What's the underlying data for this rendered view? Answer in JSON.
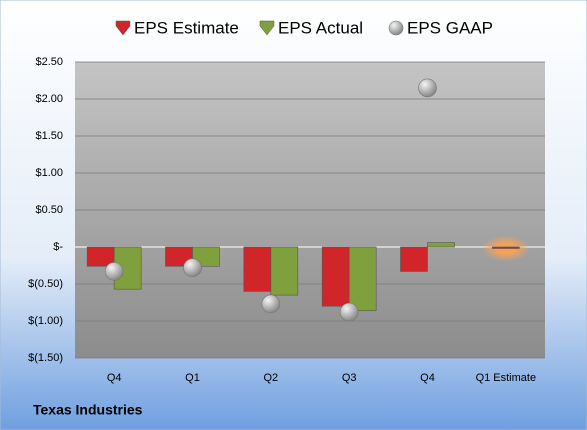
{
  "chart_data": {
    "type": "bar",
    "categories": [
      "Q4",
      "Q1",
      "Q2",
      "Q3",
      "Q4",
      "Q1 Estimate"
    ],
    "series": [
      {
        "name": "EPS Estimate",
        "color": "#d0262a",
        "values": [
          -0.26,
          -0.26,
          -0.6,
          -0.8,
          -0.33,
          -0.02
        ]
      },
      {
        "name": "EPS Actual",
        "color": "#7fa03c",
        "values": [
          -0.57,
          -0.26,
          -0.65,
          -0.86,
          0.06,
          null
        ]
      },
      {
        "name": "EPS GAAP",
        "type": "scatter",
        "color": "#a8a8a8",
        "values": [
          -0.33,
          -0.28,
          -0.77,
          -0.88,
          2.15,
          null
        ]
      }
    ],
    "ylim": [
      -1.5,
      2.5
    ],
    "yticks": [
      {
        "value": 2.5,
        "label": "$2.50"
      },
      {
        "value": 2.0,
        "label": "$2.00"
      },
      {
        "value": 1.5,
        "label": "$1.50"
      },
      {
        "value": 1.0,
        "label": "$1.00"
      },
      {
        "value": 0.5,
        "label": "$0.50"
      },
      {
        "value": 0,
        "label": "$-"
      },
      {
        "value": -0.5,
        "label": "$(0.50)"
      },
      {
        "value": -1.0,
        "label": "$(1.00)"
      },
      {
        "value": -1.5,
        "label": "$(1.50)"
      }
    ],
    "grid": true,
    "footer": "Texas Industries"
  }
}
